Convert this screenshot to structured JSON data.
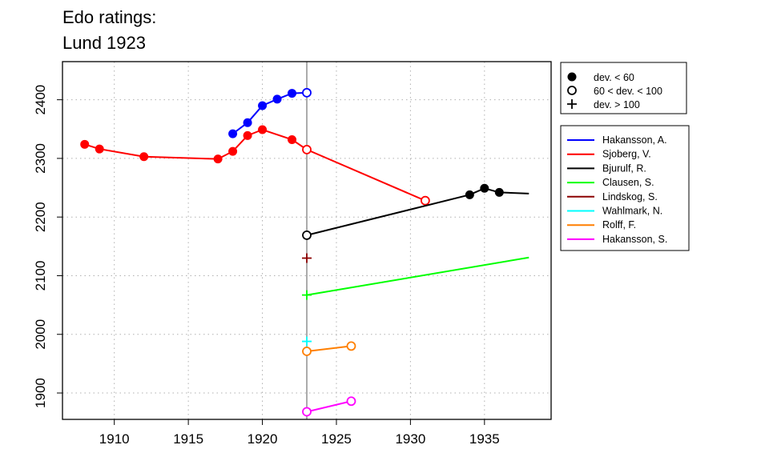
{
  "title_lines": [
    "Edo ratings:",
    "Lund 1923"
  ],
  "chart_data": {
    "type": "line",
    "xlim": [
      1906.5,
      1939.5
    ],
    "ylim": [
      1855,
      2465
    ],
    "x_ticks": [
      1910,
      1915,
      1920,
      1925,
      1930,
      1935
    ],
    "y_ticks": [
      1900,
      2000,
      2100,
      2200,
      2300,
      2400
    ],
    "grid": true,
    "reference_line_x": 1923,
    "marker_legend": [
      {
        "marker": "filled",
        "label": "dev. < 60"
      },
      {
        "marker": "open",
        "label": "60 < dev. < 100"
      },
      {
        "marker": "plus",
        "label": "dev. > 100"
      }
    ],
    "series": [
      {
        "name": "Hakansson, A.",
        "color": "#0000ff",
        "points": [
          {
            "x": 1918,
            "y": 2342,
            "m": "filled"
          },
          {
            "x": 1919,
            "y": 2361,
            "m": "filled"
          },
          {
            "x": 1920,
            "y": 2390,
            "m": "filled"
          },
          {
            "x": 1921,
            "y": 2401,
            "m": "filled"
          },
          {
            "x": 1922,
            "y": 2411,
            "m": "filled"
          },
          {
            "x": 1923,
            "y": 2412,
            "m": "open"
          }
        ]
      },
      {
        "name": "Sjoberg, V.",
        "color": "#ff0000",
        "points": [
          {
            "x": 1908,
            "y": 2324,
            "m": "filled"
          },
          {
            "x": 1909,
            "y": 2316,
            "m": "filled"
          },
          {
            "x": 1912,
            "y": 2303,
            "m": "filled"
          },
          {
            "x": 1917,
            "y": 2299,
            "m": "filled"
          },
          {
            "x": 1918,
            "y": 2312,
            "m": "filled"
          },
          {
            "x": 1919,
            "y": 2339,
            "m": "filled"
          },
          {
            "x": 1920,
            "y": 2349,
            "m": "filled"
          },
          {
            "x": 1922,
            "y": 2332,
            "m": "filled"
          },
          {
            "x": 1923,
            "y": 2315,
            "m": "open"
          },
          {
            "x": 1931,
            "y": 2228,
            "m": "open"
          }
        ]
      },
      {
        "name": "Bjurulf, R.",
        "color": "#000000",
        "points": [
          {
            "x": 1923,
            "y": 2169,
            "m": "open"
          },
          {
            "x": 1934,
            "y": 2238,
            "m": "filled"
          },
          {
            "x": 1935,
            "y": 2249,
            "m": "filled"
          },
          {
            "x": 1936,
            "y": 2242,
            "m": "filled"
          },
          {
            "x": 1938,
            "y": 2240,
            "m": "none"
          }
        ]
      },
      {
        "name": "Clausen, S.",
        "color": "#00ff00",
        "points": [
          {
            "x": 1923,
            "y": 2067,
            "m": "plus"
          },
          {
            "x": 1938,
            "y": 2131,
            "m": "none"
          }
        ]
      },
      {
        "name": "Lindskog, S.",
        "color": "#8b0000",
        "points": [
          {
            "x": 1923,
            "y": 2130,
            "m": "plus"
          }
        ]
      },
      {
        "name": "Wahlmark, N.",
        "color": "#00ffff",
        "points": [
          {
            "x": 1923,
            "y": 1988,
            "m": "plus"
          }
        ]
      },
      {
        "name": "Rolff, F.",
        "color": "#ff7f00",
        "points": [
          {
            "x": 1923,
            "y": 1971,
            "m": "open"
          },
          {
            "x": 1926,
            "y": 1980,
            "m": "open"
          }
        ]
      },
      {
        "name": "Hakansson, S.",
        "color": "#ff00ff",
        "points": [
          {
            "x": 1923,
            "y": 1868,
            "m": "open"
          },
          {
            "x": 1926,
            "y": 1886,
            "m": "open"
          }
        ]
      }
    ]
  }
}
